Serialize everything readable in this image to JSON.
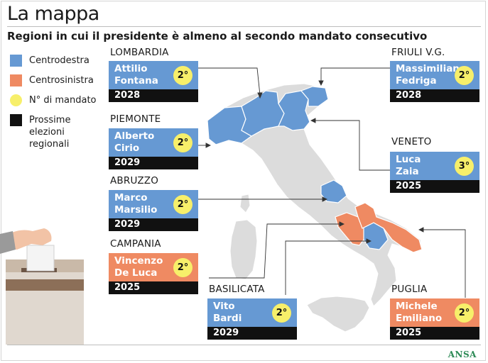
{
  "title": "La mappa",
  "subtitle": "Regioni in cui il presidente è almeno al secondo mandato consecutivo",
  "legend": [
    {
      "label": "Centrodestra",
      "color": "#6699d3",
      "shape": "square"
    },
    {
      "label": "Centrosinistra",
      "color": "#ef8a62",
      "shape": "square"
    },
    {
      "label": "N° di mandato",
      "color": "#f7ef6a",
      "shape": "circle"
    },
    {
      "label": "Prossime elezioni regionali",
      "color": "#111111",
      "shape": "square"
    }
  ],
  "regions": [
    {
      "region": "LOMBARDIA",
      "first": "Attilio",
      "last": "Fontana",
      "term": "2°",
      "year": "2028",
      "coalition": "Centrodestra"
    },
    {
      "region": "PIEMONTE",
      "first": "Alberto",
      "last": "Cirio",
      "term": "2°",
      "year": "2029",
      "coalition": "Centrodestra"
    },
    {
      "region": "ABRUZZO",
      "first": "Marco",
      "last": "Marsilio",
      "term": "2°",
      "year": "2029",
      "coalition": "Centrodestra"
    },
    {
      "region": "CAMPANIA",
      "first": "Vincenzo",
      "last": "De Luca",
      "term": "2°",
      "year": "2025",
      "coalition": "Centrosinistra"
    },
    {
      "region": "BASILICATA",
      "first": "Vito",
      "last": "Bardi",
      "term": "2°",
      "year": "2029",
      "coalition": "Centrodestra"
    },
    {
      "region": "PUGLIA",
      "first": "Michele",
      "last": "Emiliano",
      "term": "2°",
      "year": "2025",
      "coalition": "Centrosinistra"
    },
    {
      "region": "VENETO",
      "first": "Luca",
      "last": "Zaia",
      "term": "3°",
      "year": "2025",
      "coalition": "Centrodestra"
    },
    {
      "region": "FRIULI V.G.",
      "first": "Massimiliano",
      "last": "Fedriga",
      "term": "2°",
      "year": "2028",
      "coalition": "Centrodestra"
    }
  ],
  "source": "ANSA"
}
